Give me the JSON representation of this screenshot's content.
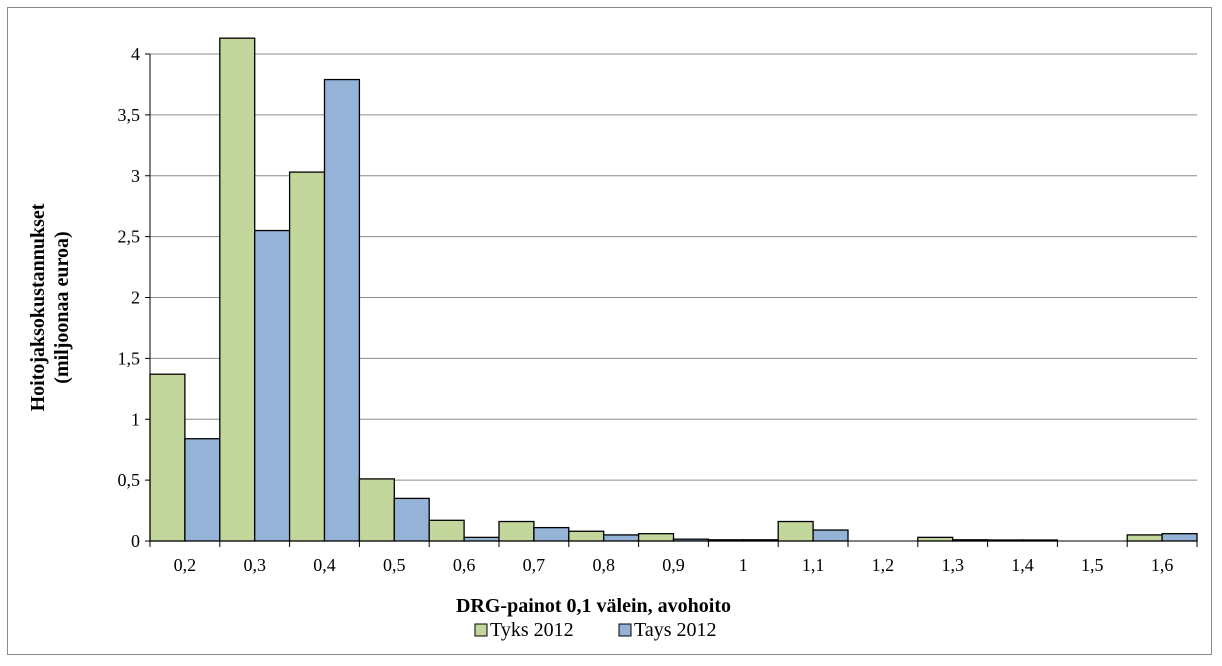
{
  "chart_data": {
    "type": "bar",
    "xlabel": "DRG-painot 0,1 välein, avohoito",
    "ylabel_lines": [
      "Hoitojaksokustannukset",
      "(miljoonaa euroa)"
    ],
    "categories": [
      "0,2",
      "0,3",
      "0,4",
      "0,5",
      "0,6",
      "0,7",
      "0,8",
      "0,9",
      "1",
      "1,1",
      "1,2",
      "1,3",
      "1,4",
      "1,5",
      "1,6"
    ],
    "series": [
      {
        "name": "Tyks 2012",
        "color": "#c3d69b",
        "values": [
          1.37,
          4.13,
          3.03,
          0.51,
          0.17,
          0.16,
          0.08,
          0.06,
          0.01,
          0.16,
          0.0,
          0.03,
          0.005,
          0.0,
          0.05
        ]
      },
      {
        "name": "Tays 2012",
        "color": "#95b3d7",
        "values": [
          0.84,
          2.55,
          3.79,
          0.35,
          0.03,
          0.11,
          0.05,
          0.015,
          0.01,
          0.09,
          0.0,
          0.01,
          0.005,
          0.0,
          0.06
        ]
      }
    ],
    "ylim": [
      0,
      4
    ],
    "yticks": [
      0,
      0.5,
      1,
      1.5,
      2,
      2.5,
      3,
      3.5,
      4
    ],
    "ytick_labels": [
      "0",
      "0,5",
      "1",
      "1,5",
      "2",
      "2,5",
      "3",
      "3,5",
      "4"
    ],
    "grid": true,
    "legend_position": "bottom"
  }
}
